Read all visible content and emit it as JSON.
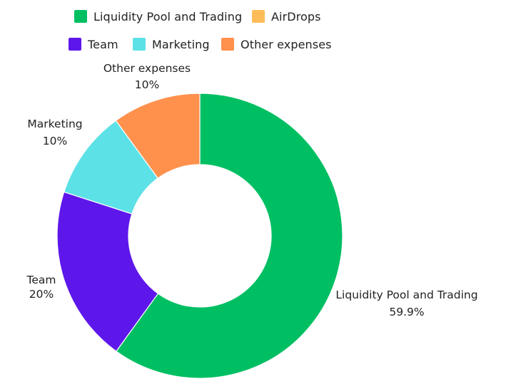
{
  "chart_data": {
    "type": "pie",
    "donut": true,
    "legend_position": "top",
    "categories": [
      "Liquidity Pool and Trading",
      "AirDrops",
      "Team",
      "Marketing",
      "Other expenses"
    ],
    "values": [
      59.9,
      0,
      20,
      10,
      10
    ],
    "value_labels": [
      "59.9%",
      "0%",
      "20%",
      "10%",
      "10%"
    ],
    "colors": [
      "#00bf63",
      "#ffbd59",
      "#5e17eb",
      "#5ce1e6",
      "#ff914d"
    ],
    "legend": [
      {
        "label": "Liquidity Pool and Trading",
        "color": "#00bf63"
      },
      {
        "label": "AirDrops",
        "color": "#ffbd59"
      },
      {
        "label": "Team",
        "color": "#5e17eb"
      },
      {
        "label": "Marketing",
        "color": "#5ce1e6"
      },
      {
        "label": "Other expenses",
        "color": "#ff914d"
      }
    ],
    "data_labels": [
      {
        "name": "Liquidity Pool and Trading",
        "value": "59.9%"
      },
      {
        "name": "Team",
        "value": "20%"
      },
      {
        "name": "Marketing",
        "value": "10%"
      },
      {
        "name": "Other expenses",
        "value": "10%"
      }
    ]
  }
}
